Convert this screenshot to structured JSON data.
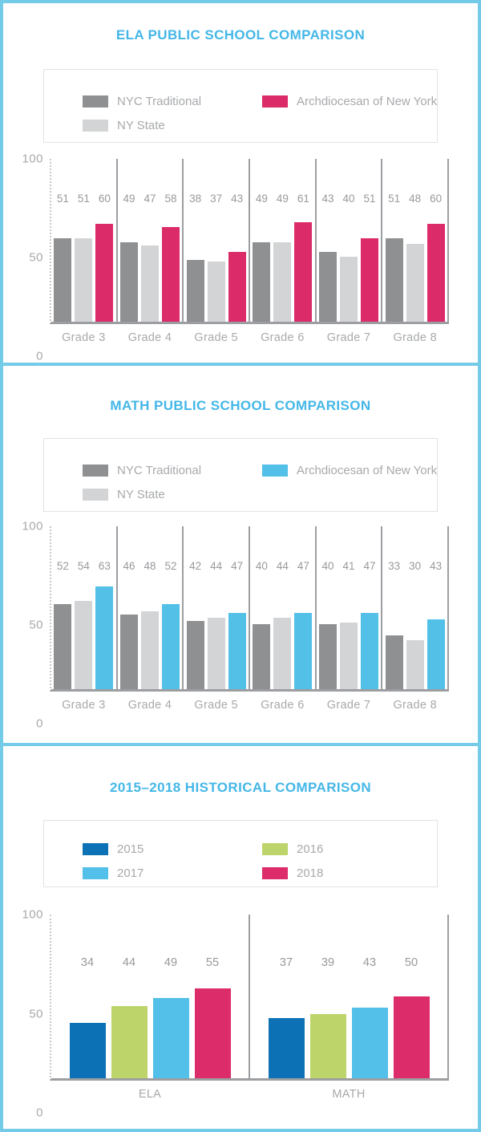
{
  "ui": {
    "colors": {
      "panel_border": "#74CBE7",
      "title": "#44B7E7",
      "axis_text": "#A7A9AC",
      "value_text": "#97999C",
      "grid_line": "#9C9EA1",
      "dotted_axis": "#C8C9CB",
      "legend_border": "#E2E3E4",
      "legend_text": "#A7A9AC",
      "background": "#FFFFFF"
    }
  },
  "chart_data": [
    {
      "type": "bar",
      "title": "ELA PUBLIC SCHOOL COMPARISON",
      "categories": [
        "Grade 3",
        "Grade 4",
        "Grade 5",
        "Grade 6",
        "Grade 7",
        "Grade 8"
      ],
      "series": [
        {
          "name": "NYC Traditional",
          "color": "#8E9092",
          "values": [
            51,
            49,
            38,
            49,
            43,
            51
          ]
        },
        {
          "name": "NY State",
          "color": "#D2D4D5",
          "values": [
            51,
            47,
            37,
            49,
            40,
            48
          ]
        },
        {
          "name": "Archdiocesan of New York",
          "color": "#DB2B68",
          "values": [
            60,
            58,
            43,
            61,
            51,
            60
          ]
        }
      ],
      "ylim": [
        0,
        100
      ],
      "yticks": [
        100,
        50,
        0
      ],
      "grid": "vertical-group-separators",
      "legend_position": "top",
      "legend_columns": [
        [
          0,
          1
        ],
        [
          2
        ]
      ],
      "value_labels_shown": true
    },
    {
      "type": "bar",
      "title": "MATH PUBLIC SCHOOL COMPARISON",
      "categories": [
        "Grade 3",
        "Grade 4",
        "Grade 5",
        "Grade 6",
        "Grade 7",
        "Grade 8"
      ],
      "series": [
        {
          "name": "NYC Traditional",
          "color": "#8E9092",
          "values": [
            52,
            46,
            42,
            40,
            40,
            33
          ]
        },
        {
          "name": "NY State",
          "color": "#D2D4D5",
          "values": [
            54,
            48,
            44,
            44,
            41,
            30
          ]
        },
        {
          "name": "Archdiocesan of New York",
          "color": "#53C0E8",
          "values": [
            63,
            52,
            47,
            47,
            47,
            43
          ]
        }
      ],
      "ylim": [
        0,
        100
      ],
      "yticks": [
        100,
        50,
        0
      ],
      "grid": "vertical-group-separators",
      "legend_position": "top",
      "legend_columns": [
        [
          0,
          1
        ],
        [
          2
        ]
      ],
      "value_labels_shown": true
    },
    {
      "type": "bar",
      "title": "2015–2018 HISTORICAL COMPARISON",
      "categories": [
        "ELA",
        "MATH"
      ],
      "series": [
        {
          "name": "2015",
          "color": "#0C72B5",
          "values": [
            34,
            37
          ]
        },
        {
          "name": "2016",
          "color": "#BDD46A",
          "values": [
            44,
            39
          ]
        },
        {
          "name": "2017",
          "color": "#52C0E8",
          "values": [
            49,
            43
          ]
        },
        {
          "name": "2018",
          "color": "#DC2C69",
          "values": [
            55,
            50
          ]
        }
      ],
      "ylim": [
        0,
        100
      ],
      "yticks": [
        100,
        50,
        0
      ],
      "grid": "vertical-group-separators",
      "legend_position": "top",
      "legend_columns": [
        [
          0,
          2
        ],
        [
          1,
          3
        ]
      ],
      "value_labels_shown": true
    }
  ]
}
